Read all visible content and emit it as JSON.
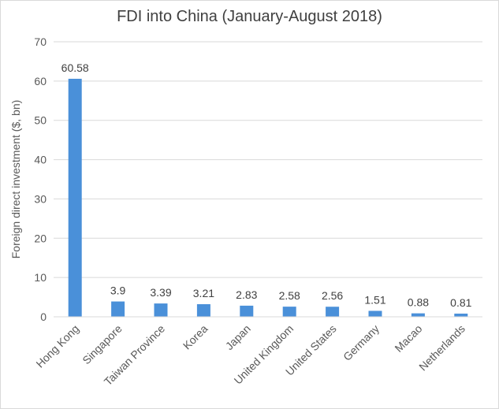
{
  "chart_data": {
    "type": "bar",
    "title": "FDI into China (January-August 2018)",
    "xlabel": "",
    "ylabel": "Foreign direct investment ($, bn)",
    "categories": [
      "Hong Kong",
      "Singapore",
      "Taiwan Province",
      "Korea",
      "Japan",
      "United Kingdom",
      "United States",
      "Germany",
      "Macao",
      "Netherlands"
    ],
    "values": [
      60.58,
      3.9,
      3.39,
      3.21,
      2.83,
      2.58,
      2.56,
      1.51,
      0.88,
      0.81
    ],
    "data_labels": [
      "60.58",
      "3.9",
      "3.39",
      "3.21",
      "2.83",
      "2.58",
      "2.56",
      "1.51",
      "0.88",
      "0.81"
    ],
    "ylim": [
      0,
      70
    ],
    "yticks": [
      0,
      10,
      20,
      30,
      40,
      50,
      60,
      70
    ],
    "grid": true,
    "legend": "none",
    "bar_color": "#4a90d9",
    "grid_color": "#d9d9d9"
  }
}
